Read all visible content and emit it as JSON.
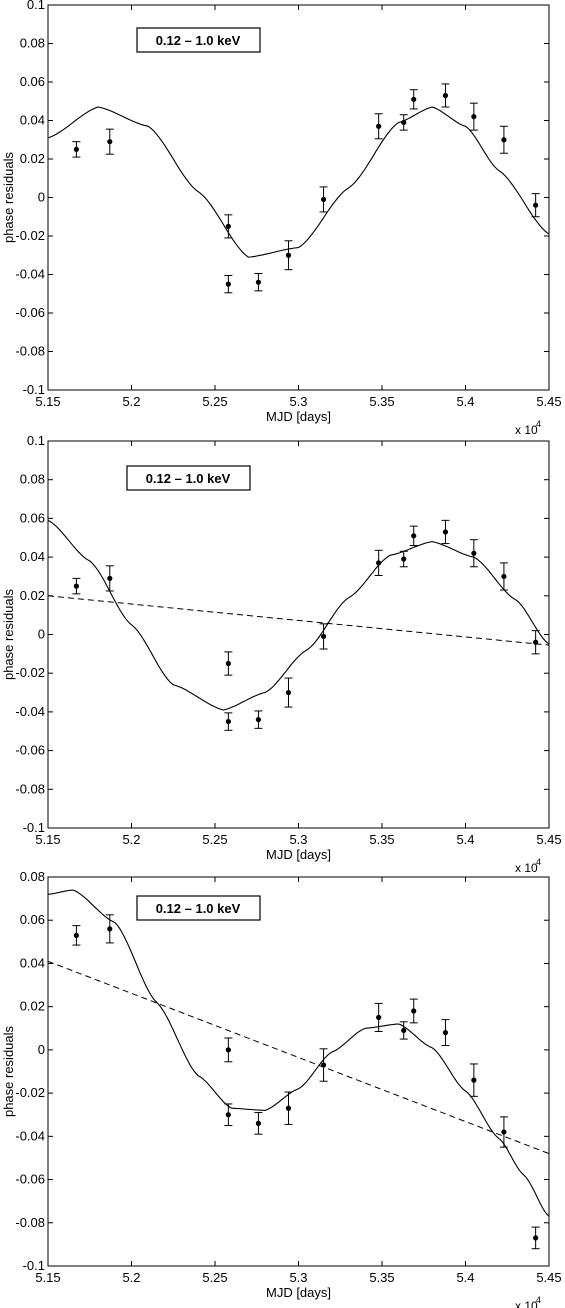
{
  "chart_data": [
    {
      "type": "scatter",
      "title": "",
      "xlabel": "MJD [days]",
      "ylabel": "phase residuals",
      "x_multiplier": "x 10",
      "x_multiplier_exp": "4",
      "xlim": [
        51500,
        54500
      ],
      "ylim": [
        -0.1,
        0.1
      ],
      "xticks": [
        "5.15",
        "5.2",
        "5.25",
        "5.3",
        "5.35",
        "5.4",
        "5.45"
      ],
      "yticks": [
        "0.1",
        "0.08",
        "0.06",
        "0.04",
        "0.02",
        "0",
        "-0.02",
        "-0.04",
        "-0.06",
        "-0.08",
        "-0.1"
      ],
      "legend": "0.12 – 1.0 keV",
      "series": [
        {
          "kind": "points-with-errorbars",
          "x": [
            51670,
            51870,
            52580,
            52580,
            52760,
            52940,
            53150,
            53480,
            53630,
            53690,
            53880,
            54050,
            54230,
            54420
          ],
          "y": [
            0.025,
            0.029,
            -0.015,
            -0.045,
            -0.044,
            -0.03,
            -0.001,
            0.037,
            0.039,
            0.051,
            0.053,
            0.042,
            0.03,
            -0.004
          ],
          "err": [
            0.004,
            0.0065,
            0.006,
            0.0045,
            0.0045,
            0.0075,
            0.0065,
            0.0065,
            0.004,
            0.005,
            0.006,
            0.007,
            0.007,
            0.006
          ]
        },
        {
          "kind": "solid-curve",
          "x": [
            51500,
            51800,
            52100,
            52400,
            52700,
            53000,
            53300,
            53600,
            53800,
            54000,
            54200,
            54500
          ],
          "y": [
            0.031,
            0.047,
            0.037,
            0.003,
            -0.031,
            -0.026,
            0.005,
            0.039,
            0.047,
            0.037,
            0.014,
            -0.019
          ]
        }
      ]
    },
    {
      "type": "scatter",
      "title": "",
      "xlabel": "MJD [days]",
      "ylabel": "phase residuals",
      "x_multiplier": "x 10",
      "x_multiplier_exp": "4",
      "xlim": [
        51500,
        54500
      ],
      "ylim": [
        -0.1,
        0.1
      ],
      "xticks": [
        "5.15",
        "5.2",
        "5.25",
        "5.3",
        "5.35",
        "5.4",
        "5.45"
      ],
      "yticks": [
        "0.1",
        "0.08",
        "0.06",
        "0.04",
        "0.02",
        "0",
        "-0.02",
        "-0.04",
        "-0.06",
        "-0.08",
        "-0.1"
      ],
      "legend": "0.12 – 1.0 keV",
      "series": [
        {
          "kind": "points-with-errorbars",
          "x": [
            51670,
            51870,
            52580,
            52580,
            52760,
            52940,
            53150,
            53480,
            53630,
            53690,
            53880,
            54050,
            54230,
            54420
          ],
          "y": [
            0.025,
            0.029,
            -0.015,
            -0.045,
            -0.044,
            -0.03,
            -0.001,
            0.037,
            0.039,
            0.051,
            0.053,
            0.042,
            0.03,
            -0.004
          ],
          "err": [
            0.004,
            0.0065,
            0.006,
            0.0045,
            0.0045,
            0.0075,
            0.0065,
            0.0065,
            0.004,
            0.005,
            0.006,
            0.007,
            0.007,
            0.006
          ]
        },
        {
          "kind": "solid-curve",
          "x": [
            51500,
            51750,
            52000,
            52250,
            52550,
            52800,
            53050,
            53300,
            53550,
            53800,
            54050,
            54300,
            54500
          ],
          "y": [
            0.059,
            0.038,
            0.005,
            -0.026,
            -0.039,
            -0.03,
            -0.008,
            0.019,
            0.041,
            0.048,
            0.04,
            0.018,
            -0.005
          ]
        },
        {
          "kind": "dashed-line",
          "x": [
            51500,
            54500
          ],
          "y": [
            0.02,
            -0.0055
          ]
        }
      ]
    },
    {
      "type": "scatter",
      "title": "",
      "xlabel": "MJD [days]",
      "ylabel": "phase residuals",
      "x_multiplier": "x 10",
      "x_multiplier_exp": "4",
      "xlim": [
        51500,
        54500
      ],
      "ylim": [
        -0.1,
        0.08
      ],
      "xticks": [
        "5.15",
        "5.2",
        "5.25",
        "5.3",
        "5.35",
        "5.4",
        "5.45"
      ],
      "yticks": [
        "0.08",
        "0.06",
        "0.04",
        "0.02",
        "0",
        "-0.02",
        "-0.04",
        "-0.06",
        "-0.08",
        "-0.1"
      ],
      "legend": "0.12 – 1.0 keV",
      "series": [
        {
          "kind": "points-with-errorbars",
          "x": [
            51670,
            51870,
            52580,
            52580,
            52760,
            52940,
            53150,
            53480,
            53630,
            53690,
            53880,
            54050,
            54230,
            54420
          ],
          "y": [
            0.053,
            0.056,
            0.0,
            -0.03,
            -0.034,
            -0.027,
            -0.007,
            0.015,
            0.009,
            0.018,
            0.008,
            -0.014,
            -0.038,
            -0.087
          ],
          "err": [
            0.0045,
            0.0065,
            0.0055,
            0.005,
            0.005,
            0.0075,
            0.0075,
            0.0065,
            0.004,
            0.0055,
            0.006,
            0.0075,
            0.007,
            0.005
          ]
        },
        {
          "kind": "solid-curve",
          "x": [
            51500,
            51650,
            51900,
            52150,
            52400,
            52600,
            52800,
            53000,
            53200,
            53400,
            53600,
            53800,
            54000,
            54200,
            54350,
            54500
          ],
          "y": [
            0.072,
            0.074,
            0.059,
            0.022,
            -0.012,
            -0.027,
            -0.028,
            -0.018,
            -0.001,
            0.01,
            0.012,
            0.001,
            -0.019,
            -0.041,
            -0.058,
            -0.077
          ]
        },
        {
          "kind": "dashed-line",
          "x": [
            51500,
            54500
          ],
          "y": [
            0.041,
            -0.048
          ]
        }
      ]
    }
  ]
}
